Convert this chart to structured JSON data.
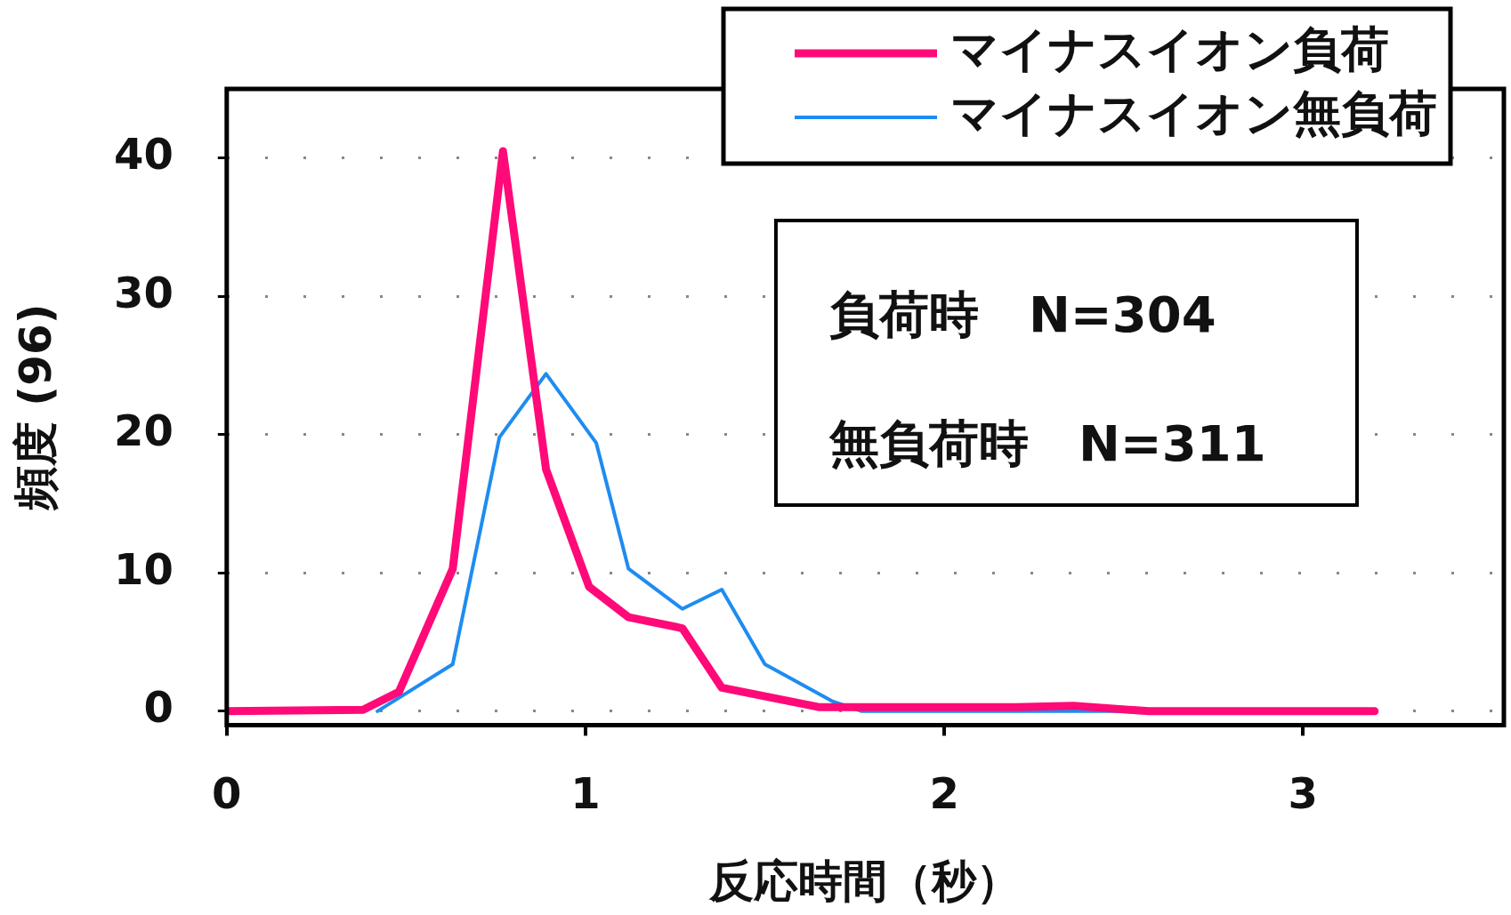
{
  "chart_data": {
    "type": "line",
    "xlabel": "反応時間（秒）",
    "ylabel": "頻度 (96)",
    "xlim": [
      0,
      3.56
    ],
    "xticks": [
      0,
      1,
      2,
      3
    ],
    "ylim": [
      -1,
      45
    ],
    "yticks": [
      0,
      10,
      20,
      30,
      40
    ],
    "grid": "y",
    "legend": "top right",
    "marker": "none",
    "annotations": [
      "負荷時　N=304",
      "無負荷時　N=311"
    ],
    "series": [
      {
        "name": "マイナスイオン負荷",
        "color": "#ff0a78",
        "x": [
          0,
          0.38,
          0.48,
          0.63,
          0.77,
          0.89,
          1.01,
          1.12,
          1.27,
          1.38,
          1.65,
          2.2,
          2.36,
          2.57,
          3.2
        ],
        "values": [
          0,
          0.1,
          1.4,
          10.3,
          40.5,
          17.5,
          9,
          6.8,
          6,
          1.7,
          0.3,
          0.3,
          0.4,
          0,
          0
        ]
      },
      {
        "name": "マイナスイオン無負荷",
        "color": "#1e8cf0",
        "x": [
          0.42,
          0.63,
          0.76,
          0.89,
          1.03,
          1.12,
          1.27,
          1.38,
          1.5,
          1.69,
          1.77,
          2.5
        ],
        "values": [
          0,
          3.4,
          19.8,
          24.4,
          19.4,
          10.3,
          7.4,
          8.8,
          3.4,
          0.7,
          0,
          0
        ]
      }
    ]
  }
}
